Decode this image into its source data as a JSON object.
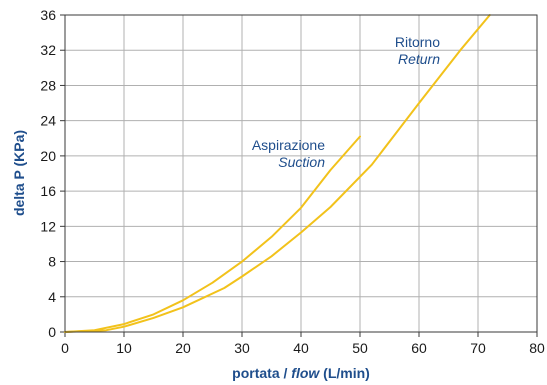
{
  "chart_data": {
    "type": "line",
    "title": "",
    "xlabel_main": "portata / ",
    "xlabel_italic": "flow",
    "xlabel_unit": " (L/min)",
    "ylabel": "delta P (KPa)",
    "xlim": [
      0,
      80
    ],
    "ylim": [
      0,
      36
    ],
    "xticks": [
      0,
      10,
      20,
      30,
      40,
      50,
      60,
      70,
      80
    ],
    "yticks": [
      0,
      4,
      8,
      12,
      16,
      20,
      24,
      28,
      32,
      36
    ],
    "grid": true,
    "series": [
      {
        "name": "Aspirazione",
        "name_en": "Suction",
        "color": "#f2c21b",
        "x": [
          0,
          5,
          10,
          15,
          20,
          25,
          30,
          35,
          40,
          45,
          50
        ],
        "y": [
          0,
          0.2,
          0.9,
          2.0,
          3.6,
          5.6,
          8.0,
          10.8,
          14.1,
          18.4,
          22.2
        ]
      },
      {
        "name": "Ritorno",
        "name_en": "Return",
        "color": "#f2c21b",
        "x": [
          0,
          7,
          10,
          15,
          20,
          27,
          30,
          35,
          40,
          45,
          52,
          60,
          67,
          72
        ],
        "y": [
          0,
          0.2,
          0.6,
          1.6,
          2.8,
          5.0,
          6.3,
          8.6,
          11.3,
          14.2,
          19.0,
          26.0,
          32.0,
          36.0
        ]
      }
    ],
    "annotations": [
      {
        "text": "Aspirazione",
        "italic": false,
        "series": 0
      },
      {
        "text": "Suction",
        "italic": true,
        "series": 0
      },
      {
        "text": "Ritorno",
        "italic": false,
        "series": 1
      },
      {
        "text": "Return",
        "italic": true,
        "series": 1
      }
    ]
  }
}
